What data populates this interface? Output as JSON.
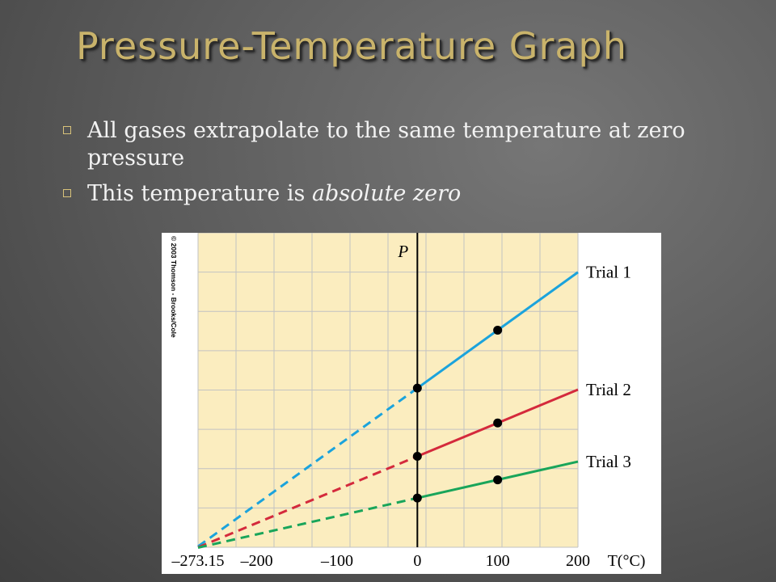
{
  "slide": {
    "title": "Pressure-Temperature Graph",
    "bullets": [
      {
        "text": "All gases extrapolate to the same temperature at zero pressure",
        "emphasis": ""
      },
      {
        "text": "This temperature is ",
        "emphasis": "absolute zero"
      }
    ]
  },
  "chart_data": {
    "type": "line",
    "copyright": "© 2003 Thomson - Brooks/Cole",
    "xlabel": "T(°C)",
    "ylabel": "P",
    "x_ticks": [
      "–273.15",
      "–200",
      "–100",
      "0",
      "100",
      "200"
    ],
    "xlim": [
      -273.15,
      200
    ],
    "ylim": [
      0,
      8.3
    ],
    "grid": true,
    "extrapolated_style": "dashed",
    "series": [
      {
        "name": "Trial 1",
        "color": "#1ba3dc",
        "points": [
          [
            0,
            4.2
          ],
          [
            100,
            5.73
          ]
        ]
      },
      {
        "name": "Trial 2",
        "color": "#d42a3c",
        "points": [
          [
            0,
            2.4
          ],
          [
            100,
            3.28
          ]
        ]
      },
      {
        "name": "Trial 3",
        "color": "#19a55a",
        "points": [
          [
            0,
            1.3
          ],
          [
            100,
            1.78
          ]
        ]
      }
    ],
    "extrapolate_to": [
      -273.15,
      0
    ],
    "line_end_x": 200
  }
}
